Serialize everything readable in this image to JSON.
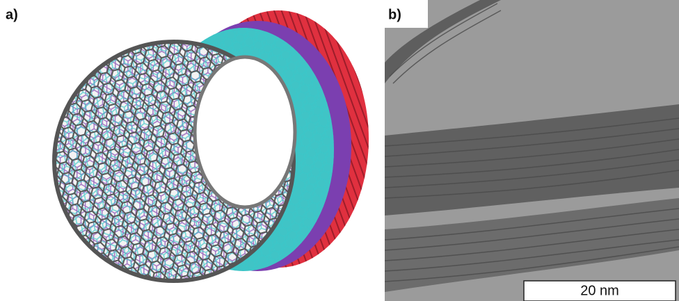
{
  "panels": [
    {
      "label": "a)"
    },
    {
      "label": "b)",
      "scale_bar": "20 nm"
    }
  ]
}
